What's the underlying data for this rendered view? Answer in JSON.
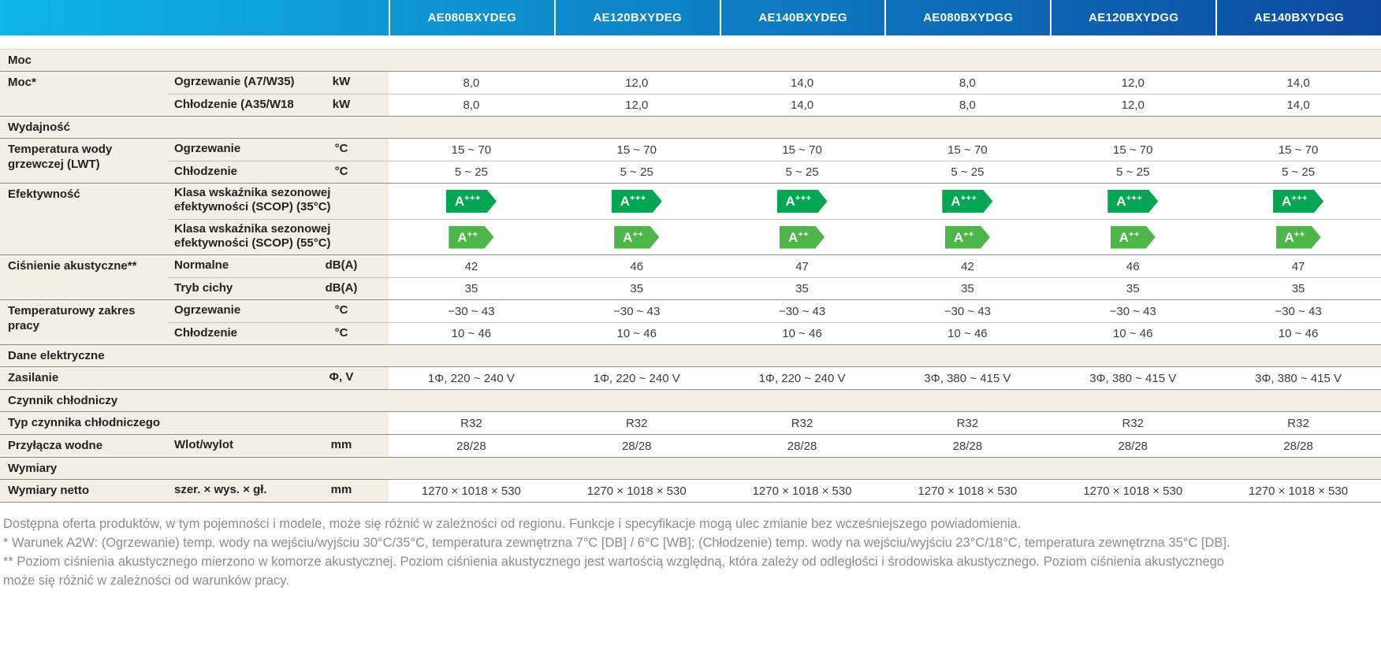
{
  "header": {
    "models": [
      "AE080BXYDEG",
      "AE120BXYDEG",
      "AE140BXYDEG",
      "AE080BXYDGG",
      "AE120BXYDGG",
      "AE140BXYDGG"
    ]
  },
  "colors": {
    "header_gradient_left": "#0db5e8",
    "header_gradient_right": "#0c4aa0",
    "label_background": "#f4efe5",
    "group_separator_line": "#8f8d88",
    "subrow_separator_line": "#c9c4ba",
    "energy_class_a3plus": "#00a651",
    "energy_class_a2plus": "#4cb748",
    "footnote_text": "#8c8c8c"
  },
  "table": {
    "groups": [
      {
        "section": "Moc"
      },
      {
        "label": "Moc*",
        "rows": [
          {
            "sub": "Ogrzewanie (A7/W35)",
            "unit": "kW",
            "values": [
              "8,0",
              "12,0",
              "14,0",
              "8,0",
              "12,0",
              "14,0"
            ]
          },
          {
            "sub": "Chłodzenie (A35/W18)",
            "unit": "kW",
            "values": [
              "8,0",
              "12,0",
              "14,0",
              "8,0",
              "12,0",
              "14,0"
            ]
          }
        ]
      },
      {
        "section": "Wydajność"
      },
      {
        "label": "Temperatura wody grzewczej (LWT)",
        "rows": [
          {
            "sub": "Ogrzewanie",
            "unit": "°C",
            "values": [
              "15 ~ 70",
              "15 ~ 70",
              "15 ~ 70",
              "15 ~ 70",
              "15 ~ 70",
              "15 ~ 70"
            ]
          },
          {
            "sub": "Chłodzenie",
            "unit": "°C",
            "values": [
              "5 ~ 25",
              "5 ~ 25",
              "5 ~ 25",
              "5 ~ 25",
              "5 ~ 25",
              "5 ~ 25"
            ]
          }
        ]
      },
      {
        "label": "Efektywność",
        "rows": [
          {
            "sub": "Klasa wskaźnika sezonowej efektywności (SCOP) (35°C)",
            "unit": "",
            "tall": true,
            "badge_color": "#00a651",
            "values": [
              "A+++",
              "A+++",
              "A+++",
              "A+++",
              "A+++",
              "A+++"
            ]
          },
          {
            "sub": "Klasa wskaźnika sezonowej efektywności (SCOP) (55°C)",
            "unit": "",
            "tall": true,
            "badge_color": "#4cb748",
            "values": [
              "A++",
              "A++",
              "A++",
              "A++",
              "A++",
              "A++"
            ]
          }
        ]
      },
      {
        "label": "Ciśnienie akustyczne**",
        "rows": [
          {
            "sub": "Normalne",
            "unit": "dB(A)",
            "values": [
              "42",
              "46",
              "47",
              "42",
              "46",
              "47"
            ]
          },
          {
            "sub": "Tryb cichy",
            "unit": "dB(A)",
            "values": [
              "35",
              "35",
              "35",
              "35",
              "35",
              "35"
            ]
          }
        ]
      },
      {
        "label": "Temperaturowy zakres pracy",
        "rows": [
          {
            "sub": "Ogrzewanie",
            "unit": "°C",
            "values": [
              "−30 ~ 43",
              "−30 ~ 43",
              "−30 ~ 43",
              "−30 ~ 43",
              "−30 ~ 43",
              "−30 ~ 43"
            ]
          },
          {
            "sub": "Chłodzenie",
            "unit": "°C",
            "values": [
              "10 ~ 46",
              "10 ~ 46",
              "10 ~ 46",
              "10 ~ 46",
              "10 ~ 46",
              "10 ~ 46"
            ]
          }
        ]
      },
      {
        "section": "Dane elektryczne"
      },
      {
        "label": "Zasilanie",
        "rows": [
          {
            "sub": "",
            "unit": "Φ, V",
            "values": [
              "1Φ, 220 ~ 240 V",
              "1Φ, 220 ~ 240 V",
              "1Φ, 220 ~ 240 V",
              "3Φ, 380 ~ 415 V",
              "3Φ, 380 ~ 415 V",
              "3Φ, 380 ~ 415 V"
            ]
          }
        ]
      },
      {
        "section": "Czynnik chłodniczy"
      },
      {
        "label": "Typ czynnika chłodniczego",
        "rows": [
          {
            "sub": "",
            "unit": "",
            "values": [
              "R32",
              "R32",
              "R32",
              "R32",
              "R32",
              "R32"
            ]
          }
        ]
      },
      {
        "label": "Przyłącza wodne",
        "rows": [
          {
            "sub": "Wlot/wylot",
            "unit": "mm",
            "values": [
              "28/28",
              "28/28",
              "28/28",
              "28/28",
              "28/28",
              "28/28"
            ]
          }
        ]
      },
      {
        "section": "Wymiary"
      },
      {
        "label": "Wymiary netto",
        "rows": [
          {
            "sub": "szer. × wys. × gł.",
            "unit": "mm",
            "values": [
              "1270 × 1018 × 530",
              "1270 × 1018 × 530",
              "1270 × 1018 × 530",
              "1270 × 1018 × 530",
              "1270 × 1018 × 530",
              "1270 × 1018 × 530"
            ]
          }
        ]
      }
    ]
  },
  "footnotes": [
    "Dostępna oferta produktów, w tym pojemności i modele, może się różnić w zależności od regionu. Funkcje i specyfikacje mogą ulec zmianie bez wcześniejszego powiadomienia.",
    "* Warunek A2W: (Ogrzewanie) temp. wody na wejściu/wyjściu 30°C/35°C, temperatura zewnętrzna 7°C [DB] / 6°C [WB]; (Chłodzenie) temp. wody na wejściu/wyjściu 23°C/18°C, temperatura zewnętrzna 35°C [DB].",
    "** Poziom ciśnienia akustycznego mierzono w komorze akustycznej. Poziom ciśnienia akustycznego jest wartością względną, która zależy od odległości i środowiska akustycznego. Poziom ciśnienia akustycznego może się różnić w zależności od warunków pracy."
  ]
}
